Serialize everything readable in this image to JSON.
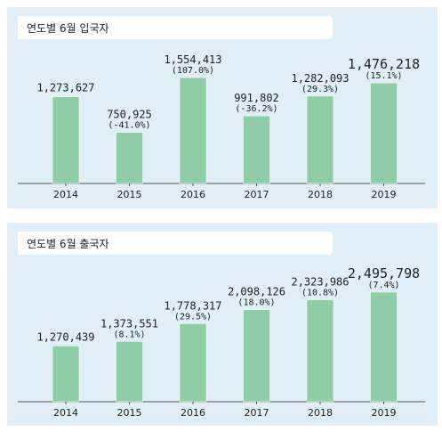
{
  "chart_data": [
    {
      "type": "bar",
      "title": "연도별 6월 입국자",
      "categories": [
        "2014",
        "2015",
        "2016",
        "2017",
        "2018",
        "2019"
      ],
      "values": [
        1273627,
        750925,
        1554413,
        991802,
        1282093,
        1476218
      ],
      "value_labels": [
        "1,273,627",
        "750,925",
        "1,554,413",
        "991,802",
        "1,282,093",
        "1,476,218"
      ],
      "change_labels": [
        "",
        "(-41.0%)",
        "(107.0%)",
        "(-36.2%)",
        "(29.3%)",
        "(15.1%)"
      ],
      "ylim": [
        0,
        1700000
      ],
      "bar_color": "#8ecda6",
      "highlight_last": true
    },
    {
      "type": "bar",
      "title": "연도별 6월 출국자",
      "categories": [
        "2014",
        "2015",
        "2016",
        "2017",
        "2018",
        "2019"
      ],
      "values": [
        1270439,
        1373551,
        1778317,
        2098126,
        2323986,
        2495798
      ],
      "value_labels": [
        "1,270,439",
        "1,373,551",
        "1,778,317",
        "2,098,126",
        "2,323,986",
        "2,495,798"
      ],
      "change_labels": [
        "",
        "(8.1%)",
        "(29.5%)",
        "(18.0%)",
        "(10.8%)",
        "(7.4%)"
      ],
      "ylim": [
        0,
        2700000
      ],
      "bar_color": "#8ecda6",
      "highlight_last": true
    }
  ]
}
